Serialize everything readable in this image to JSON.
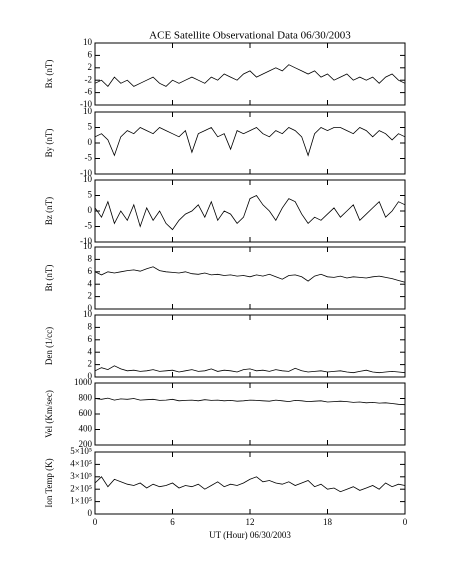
{
  "chart_data": [
    {
      "type": "line",
      "title": "ACE Satellite Observational Data   06/30/2003",
      "ylabel": "Bx (nT)",
      "color": "#000000",
      "xlim": [
        0,
        24
      ],
      "xticks": [
        0,
        6,
        12,
        18,
        {
          "value": 24,
          "label": "0"
        }
      ],
      "ylim": [
        -10,
        10
      ],
      "yticks": [
        -10,
        -6,
        -2,
        2,
        6,
        10
      ],
      "x": [
        0,
        0.5,
        1,
        1.5,
        2,
        2.5,
        3,
        3.5,
        4,
        4.5,
        5,
        5.5,
        6,
        6.5,
        7,
        7.5,
        8,
        8.5,
        9,
        9.5,
        10,
        10.5,
        11,
        11.5,
        12,
        12.5,
        13,
        13.5,
        14,
        14.5,
        15,
        15.5,
        16,
        16.5,
        17,
        17.5,
        18,
        18.5,
        19,
        19.5,
        20,
        20.5,
        21,
        21.5,
        22,
        22.5,
        23,
        23.5,
        24
      ],
      "values": [
        -3,
        -2,
        -4,
        -1,
        -3,
        -2,
        -4,
        -3,
        -2,
        -1,
        -3,
        -4,
        -2,
        -3,
        -2,
        -1,
        -2,
        -3,
        -1,
        -2,
        0,
        -1,
        -2,
        0,
        1,
        -1,
        0,
        1,
        2,
        1,
        3,
        2,
        1,
        0,
        1,
        -1,
        0,
        -2,
        -1,
        0,
        -2,
        -1,
        -2,
        -1,
        -3,
        -1,
        0,
        -2,
        -3
      ]
    },
    {
      "type": "line",
      "ylabel": "By (nT)",
      "color": "#000000",
      "xlim": [
        0,
        24
      ],
      "xticks": [
        0,
        6,
        12,
        18,
        {
          "value": 24,
          "label": "0"
        }
      ],
      "ylim": [
        -10,
        10
      ],
      "yticks": [
        -10,
        -5,
        0,
        5,
        10
      ],
      "x": [
        0,
        0.5,
        1,
        1.5,
        2,
        2.5,
        3,
        3.5,
        4,
        4.5,
        5,
        5.5,
        6,
        6.5,
        7,
        7.5,
        8,
        8.5,
        9,
        9.5,
        10,
        10.5,
        11,
        11.5,
        12,
        12.5,
        13,
        13.5,
        14,
        14.5,
        15,
        15.5,
        16,
        16.5,
        17,
        17.5,
        18,
        18.5,
        19,
        19.5,
        20,
        20.5,
        21,
        21.5,
        22,
        22.5,
        23,
        23.5,
        24
      ],
      "values": [
        2,
        3,
        1,
        -4,
        2,
        4,
        3,
        5,
        4,
        3,
        5,
        4,
        3,
        2,
        4,
        -3,
        3,
        4,
        5,
        2,
        3,
        -2,
        4,
        3,
        4,
        5,
        3,
        2,
        4,
        3,
        5,
        4,
        2,
        -4,
        3,
        5,
        4,
        5,
        5,
        4,
        3,
        5,
        4,
        2,
        4,
        3,
        1,
        3,
        2
      ]
    },
    {
      "type": "line",
      "ylabel": "Bz (nT)",
      "color": "#000000",
      "xlim": [
        0,
        24
      ],
      "xticks": [
        0,
        6,
        12,
        18,
        {
          "value": 24,
          "label": "0"
        }
      ],
      "ylim": [
        -10,
        10
      ],
      "yticks": [
        -10,
        -5,
        0,
        5,
        10
      ],
      "x": [
        0,
        0.5,
        1,
        1.5,
        2,
        2.5,
        3,
        3.5,
        4,
        4.5,
        5,
        5.5,
        6,
        6.5,
        7,
        7.5,
        8,
        8.5,
        9,
        9.5,
        10,
        10.5,
        11,
        11.5,
        12,
        12.5,
        13,
        13.5,
        14,
        14.5,
        15,
        15.5,
        16,
        16.5,
        17,
        17.5,
        18,
        18.5,
        19,
        19.5,
        20,
        20.5,
        21,
        21.5,
        22,
        22.5,
        23,
        23.5,
        24
      ],
      "values": [
        1,
        -2,
        3,
        -4,
        0,
        -3,
        2,
        -5,
        1,
        -3,
        0,
        -4,
        -6,
        -3,
        -1,
        0,
        2,
        -2,
        3,
        -3,
        0,
        -1,
        -4,
        -2,
        4,
        5,
        2,
        0,
        -3,
        1,
        4,
        3,
        -1,
        -4,
        -2,
        -3,
        -1,
        1,
        -2,
        0,
        2,
        -3,
        -1,
        1,
        3,
        -2,
        0,
        3,
        2
      ]
    },
    {
      "type": "line",
      "ylabel": "Bt (nT)",
      "color": "#000000",
      "xlim": [
        0,
        24
      ],
      "xticks": [
        0,
        6,
        12,
        18,
        {
          "value": 24,
          "label": "0"
        }
      ],
      "ylim": [
        0,
        10
      ],
      "yticks": [
        0,
        2,
        4,
        6,
        8,
        10
      ],
      "x": [
        0,
        0.5,
        1,
        1.5,
        2,
        2.5,
        3,
        3.5,
        4,
        4.5,
        5,
        5.5,
        6,
        6.5,
        7,
        7.5,
        8,
        8.5,
        9,
        9.5,
        10,
        10.5,
        11,
        11.5,
        12,
        12.5,
        13,
        13.5,
        14,
        14.5,
        15,
        15.5,
        16,
        16.5,
        17,
        17.5,
        18,
        18.5,
        19,
        19.5,
        20,
        20.5,
        21,
        21.5,
        22,
        22.5,
        23,
        23.5,
        24
      ],
      "values": [
        6,
        5.5,
        6,
        5.8,
        6,
        6.2,
        6.3,
        6.1,
        6.5,
        6.8,
        6.2,
        6,
        5.9,
        5.8,
        6,
        5.7,
        5.6,
        5.8,
        5.5,
        5.6,
        5.4,
        5.5,
        5.3,
        5.4,
        5.2,
        5.5,
        5.3,
        5.6,
        5.2,
        4.8,
        5.4,
        5.5,
        5.2,
        4.5,
        5.3,
        5.6,
        5.2,
        5.1,
        5.3,
        5,
        5.2,
        5.1,
        5,
        5.2,
        5.3,
        5.1,
        4.9,
        4.6,
        4.3
      ]
    },
    {
      "type": "line",
      "ylabel": "Den (1/cc)",
      "color": "#000000",
      "xlim": [
        0,
        24
      ],
      "xticks": [
        0,
        6,
        12,
        18,
        {
          "value": 24,
          "label": "0"
        }
      ],
      "ylim": [
        0,
        10
      ],
      "yticks": [
        0,
        2,
        4,
        6,
        8,
        10
      ],
      "x": [
        0,
        0.5,
        1,
        1.5,
        2,
        2.5,
        3,
        3.5,
        4,
        4.5,
        5,
        5.5,
        6,
        6.5,
        7,
        7.5,
        8,
        8.5,
        9,
        9.5,
        10,
        10.5,
        11,
        11.5,
        12,
        12.5,
        13,
        13.5,
        14,
        14.5,
        15,
        15.5,
        16,
        16.5,
        17,
        17.5,
        18,
        18.5,
        19,
        19.5,
        20,
        20.5,
        21,
        21.5,
        22,
        22.5,
        23,
        23.5,
        24
      ],
      "values": [
        1,
        1.5,
        1.2,
        1.8,
        1.3,
        1,
        1.1,
        0.9,
        1,
        1.2,
        0.9,
        1,
        1.1,
        0.8,
        1,
        1.2,
        0.9,
        1,
        1.3,
        0.9,
        1.1,
        1,
        0.8,
        1.2,
        1.3,
        1,
        1.1,
        0.9,
        1.2,
        1,
        0.9,
        1.4,
        1,
        0.8,
        0.9,
        1,
        0.8,
        0.9,
        1,
        0.8,
        0.7,
        0.9,
        1.1,
        0.8,
        0.7,
        0.8,
        0.9,
        0.8,
        0.7
      ]
    },
    {
      "type": "line",
      "ylabel": "Vel (Km/sec)",
      "color": "#000000",
      "xlim": [
        0,
        24
      ],
      "xticks": [
        0,
        6,
        12,
        18,
        {
          "value": 24,
          "label": "0"
        }
      ],
      "ylim": [
        200,
        1000
      ],
      "yticks": [
        200,
        400,
        600,
        800,
        1000
      ],
      "x": [
        0,
        0.5,
        1,
        1.5,
        2,
        2.5,
        3,
        3.5,
        4,
        4.5,
        5,
        5.5,
        6,
        6.5,
        7,
        7.5,
        8,
        8.5,
        9,
        9.5,
        10,
        10.5,
        11,
        11.5,
        12,
        12.5,
        13,
        13.5,
        14,
        14.5,
        15,
        15.5,
        16,
        16.5,
        17,
        17.5,
        18,
        18.5,
        19,
        19.5,
        20,
        20.5,
        21,
        21.5,
        22,
        22.5,
        23,
        23.5,
        24
      ],
      "values": [
        800,
        790,
        805,
        780,
        795,
        790,
        800,
        780,
        785,
        790,
        775,
        780,
        790,
        770,
        775,
        780,
        770,
        785,
        775,
        780,
        770,
        775,
        765,
        770,
        780,
        775,
        770,
        765,
        780,
        770,
        760,
        775,
        770,
        760,
        765,
        770,
        755,
        760,
        765,
        760,
        750,
        755,
        745,
        750,
        740,
        745,
        735,
        725,
        720
      ]
    },
    {
      "type": "line",
      "ylabel": "Ion Temp (K)",
      "xlabel": "UT (Hour)   06/30/2003",
      "color": "#000000",
      "xlim": [
        0,
        24
      ],
      "xticks": [
        0,
        6,
        12,
        18,
        {
          "value": 24,
          "label": "0"
        }
      ],
      "ylim": [
        0,
        500000
      ],
      "yticks": [
        0,
        {
          "value": 100000,
          "label": "1×10⁵"
        },
        {
          "value": 200000,
          "label": "2×10⁵"
        },
        {
          "value": 300000,
          "label": "3×10⁵"
        },
        {
          "value": 400000,
          "label": "4×10⁵"
        },
        {
          "value": 500000,
          "label": "5×10⁵"
        }
      ],
      "x": [
        0,
        0.5,
        1,
        1.5,
        2,
        2.5,
        3,
        3.5,
        4,
        4.5,
        5,
        5.5,
        6,
        6.5,
        7,
        7.5,
        8,
        8.5,
        9,
        9.5,
        10,
        10.5,
        11,
        11.5,
        12,
        12.5,
        13,
        13.5,
        14,
        14.5,
        15,
        15.5,
        16,
        16.5,
        17,
        17.5,
        18,
        18.5,
        19,
        19.5,
        20,
        20.5,
        21,
        21.5,
        22,
        22.5,
        23,
        23.5,
        24
      ],
      "values": [
        250000,
        300000,
        220000,
        280000,
        260000,
        240000,
        230000,
        250000,
        210000,
        240000,
        220000,
        230000,
        250000,
        210000,
        230000,
        220000,
        240000,
        200000,
        230000,
        260000,
        220000,
        240000,
        230000,
        250000,
        280000,
        300000,
        260000,
        270000,
        250000,
        240000,
        260000,
        230000,
        250000,
        270000,
        220000,
        240000,
        200000,
        210000,
        180000,
        200000,
        220000,
        190000,
        210000,
        230000,
        200000,
        250000,
        220000,
        240000,
        230000
      ]
    }
  ]
}
